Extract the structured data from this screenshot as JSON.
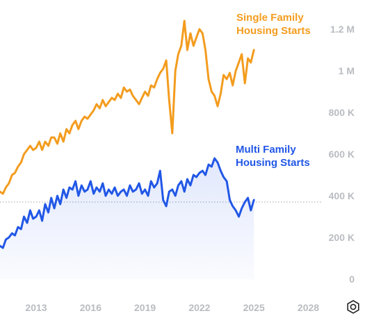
{
  "chart_data": {
    "type": "line",
    "title": "",
    "xlabel": "",
    "ylabel": "",
    "xlim": [
      2011.0,
      2028.6
    ],
    "ylim": [
      0,
      1300000
    ],
    "x_ticks": [
      2013,
      2016,
      2019,
      2022,
      2025,
      2028
    ],
    "x_tick_labels": [
      "2013",
      "2016",
      "2019",
      "2022",
      "2025",
      "2028"
    ],
    "y_ticks": [
      0,
      200000,
      400000,
      600000,
      800000,
      1000000,
      1200000
    ],
    "y_tick_labels": [
      "0",
      "200 K",
      "400 K",
      "600 K",
      "800 K",
      "1 M",
      "1.2 M"
    ],
    "reference_line": 370000,
    "series": [
      {
        "name": "Single Family Housing Starts",
        "label_lines": [
          "Single Family",
          "Housing Starts"
        ],
        "color": "#f39c1e",
        "x": [
          2011.0,
          2011.17,
          2011.33,
          2011.5,
          2011.67,
          2011.83,
          2012.0,
          2012.17,
          2012.33,
          2012.5,
          2012.67,
          2012.83,
          2013.0,
          2013.17,
          2013.33,
          2013.5,
          2013.67,
          2013.83,
          2014.0,
          2014.17,
          2014.33,
          2014.5,
          2014.67,
          2014.83,
          2015.0,
          2015.17,
          2015.33,
          2015.5,
          2015.67,
          2015.83,
          2016.0,
          2016.17,
          2016.33,
          2016.5,
          2016.67,
          2016.83,
          2017.0,
          2017.17,
          2017.33,
          2017.5,
          2017.67,
          2017.83,
          2018.0,
          2018.17,
          2018.33,
          2018.5,
          2018.67,
          2018.83,
          2019.0,
          2019.17,
          2019.33,
          2019.5,
          2019.67,
          2019.83,
          2020.0,
          2020.17,
          2020.33,
          2020.5,
          2020.67,
          2020.83,
          2021.0,
          2021.17,
          2021.33,
          2021.5,
          2021.67,
          2021.83,
          2022.0,
          2022.17,
          2022.33,
          2022.5,
          2022.67,
          2022.83,
          2023.0,
          2023.17,
          2023.33,
          2023.5,
          2023.67,
          2023.83,
          2024.0,
          2024.17,
          2024.33,
          2024.5,
          2024.67,
          2024.83,
          2025.0
        ],
        "y": [
          420000,
          410000,
          440000,
          460000,
          500000,
          510000,
          540000,
          560000,
          600000,
          620000,
          640000,
          620000,
          630000,
          660000,
          620000,
          660000,
          640000,
          680000,
          680000,
          650000,
          700000,
          660000,
          720000,
          700000,
          740000,
          760000,
          720000,
          760000,
          780000,
          770000,
          790000,
          810000,
          840000,
          820000,
          860000,
          830000,
          850000,
          870000,
          860000,
          890000,
          870000,
          920000,
          900000,
          910000,
          880000,
          860000,
          840000,
          870000,
          900000,
          880000,
          930000,
          920000,
          960000,
          990000,
          1010000,
          1050000,
          860000,
          700000,
          1000000,
          1080000,
          1120000,
          1240000,
          1100000,
          1180000,
          1120000,
          1160000,
          1200000,
          1180000,
          1100000,
          960000,
          900000,
          880000,
          830000,
          890000,
          980000,
          960000,
          990000,
          930000,
          1000000,
          1040000,
          1080000,
          940000,
          1060000,
          1040000,
          1100000
        ]
      },
      {
        "name": "Multi Family Housing Starts",
        "label_lines": [
          "Multi Family",
          "Housing Starts"
        ],
        "color": "#2157e6",
        "x": [
          2011.0,
          2011.17,
          2011.33,
          2011.5,
          2011.67,
          2011.83,
          2012.0,
          2012.17,
          2012.33,
          2012.5,
          2012.67,
          2012.83,
          2013.0,
          2013.17,
          2013.33,
          2013.5,
          2013.67,
          2013.83,
          2014.0,
          2014.17,
          2014.33,
          2014.5,
          2014.67,
          2014.83,
          2015.0,
          2015.17,
          2015.33,
          2015.5,
          2015.67,
          2015.83,
          2016.0,
          2016.17,
          2016.33,
          2016.5,
          2016.67,
          2016.83,
          2017.0,
          2017.17,
          2017.33,
          2017.5,
          2017.67,
          2017.83,
          2018.0,
          2018.17,
          2018.33,
          2018.5,
          2018.67,
          2018.83,
          2019.0,
          2019.17,
          2019.33,
          2019.5,
          2019.67,
          2019.83,
          2020.0,
          2020.17,
          2020.33,
          2020.5,
          2020.67,
          2020.83,
          2021.0,
          2021.17,
          2021.33,
          2021.5,
          2021.67,
          2021.83,
          2022.0,
          2022.17,
          2022.33,
          2022.5,
          2022.67,
          2022.83,
          2023.0,
          2023.17,
          2023.33,
          2023.5,
          2023.67,
          2023.83,
          2024.0,
          2024.17,
          2024.33,
          2024.5,
          2024.67,
          2024.83,
          2025.0
        ],
        "y": [
          160000,
          150000,
          190000,
          200000,
          220000,
          210000,
          250000,
          240000,
          300000,
          270000,
          330000,
          290000,
          300000,
          330000,
          280000,
          360000,
          320000,
          390000,
          340000,
          400000,
          360000,
          430000,
          390000,
          440000,
          430000,
          470000,
          400000,
          450000,
          420000,
          430000,
          470000,
          410000,
          440000,
          420000,
          460000,
          400000,
          430000,
          410000,
          440000,
          400000,
          420000,
          430000,
          400000,
          450000,
          420000,
          430000,
          460000,
          410000,
          430000,
          400000,
          470000,
          440000,
          460000,
          520000,
          380000,
          350000,
          420000,
          430000,
          400000,
          450000,
          470000,
          420000,
          480000,
          450000,
          500000,
          490000,
          510000,
          520000,
          500000,
          550000,
          540000,
          580000,
          560000,
          520000,
          490000,
          470000,
          380000,
          350000,
          330000,
          300000,
          340000,
          370000,
          390000,
          330000,
          380000
        ]
      }
    ]
  },
  "ui": {
    "settings_icon": "gear-icon"
  }
}
